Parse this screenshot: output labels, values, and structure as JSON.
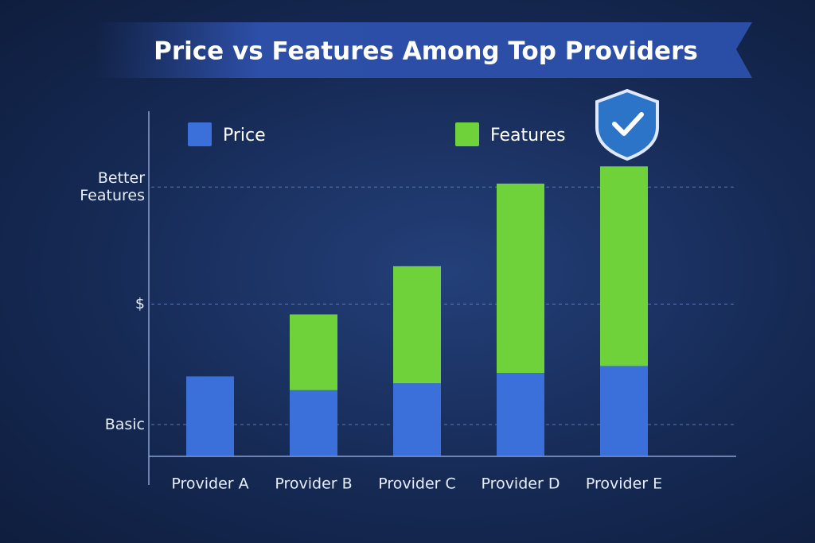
{
  "chart_data": {
    "type": "stacked_bar",
    "title": "Price vs Features Among Top Providers",
    "categories": [
      "Provider A",
      "Provider B",
      "Provider C",
      "Provider D",
      "Provider E"
    ],
    "series": [
      {
        "name": "Price",
        "color": "#3b6fd9",
        "values": [
          23,
          19,
          21,
          24,
          26
        ]
      },
      {
        "name": "Features",
        "color": "#6fd23a",
        "values": [
          0,
          22,
          34,
          55,
          58
        ]
      }
    ],
    "ylim": [
      0,
      100
    ],
    "yticks": [
      {
        "value": 9,
        "label": "Basic"
      },
      {
        "value": 44,
        "label": "$"
      },
      {
        "value": 78,
        "label": "Better Features"
      }
    ],
    "grid": true
  }
}
